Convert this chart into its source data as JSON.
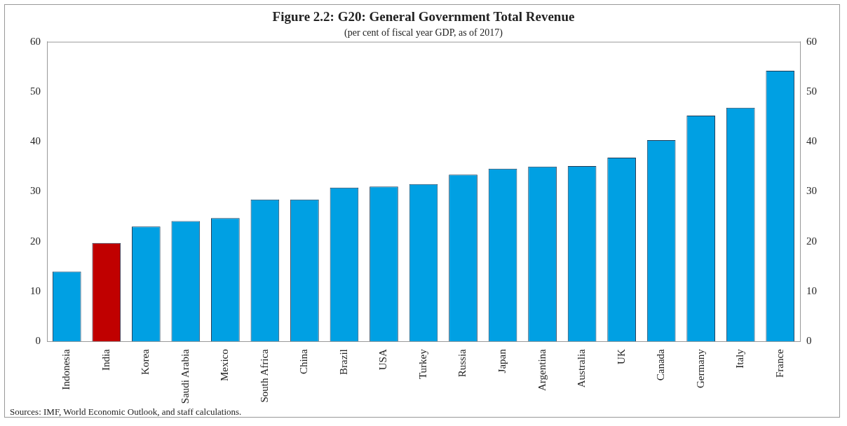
{
  "chart_data": {
    "type": "bar",
    "title": "Figure 2.2: G20: General Government Total Revenue",
    "subtitle": "(per cent of fiscal year GDP, as of 2017)",
    "categories": [
      "Indonesia",
      "India",
      "Korea",
      "Saudi Arabia",
      "Mexico",
      "South Africa",
      "China",
      "Brazil",
      "USA",
      "Turkey",
      "Russia",
      "Japan",
      "Argentina",
      "Australia",
      "UK",
      "Canada",
      "Germany",
      "Italy",
      "France"
    ],
    "values": [
      14.0,
      19.7,
      23.0,
      24.1,
      24.7,
      28.4,
      28.4,
      30.8,
      31.0,
      31.5,
      33.4,
      34.6,
      35.0,
      35.1,
      36.8,
      40.3,
      45.2,
      46.8,
      54.2
    ],
    "colors": [
      "#00a0e3",
      "#c00000",
      "#00a0e3",
      "#00a0e3",
      "#00a0e3",
      "#00a0e3",
      "#00a0e3",
      "#00a0e3",
      "#00a0e3",
      "#00a0e3",
      "#00a0e3",
      "#00a0e3",
      "#00a0e3",
      "#00a0e3",
      "#00a0e3",
      "#00a0e3",
      "#00a0e3",
      "#00a0e3",
      "#00a0e3"
    ],
    "ylim": [
      0,
      60
    ],
    "yticks": [
      0,
      10,
      20,
      30,
      40,
      50,
      60
    ],
    "y2lim": [
      0,
      60
    ],
    "y2ticks": [
      0,
      10,
      20,
      30,
      40,
      50,
      60
    ],
    "grid": false,
    "legend": false,
    "annotations": [
      "Sources: IMF, World Economic Outlook, and staff calculations."
    ]
  }
}
